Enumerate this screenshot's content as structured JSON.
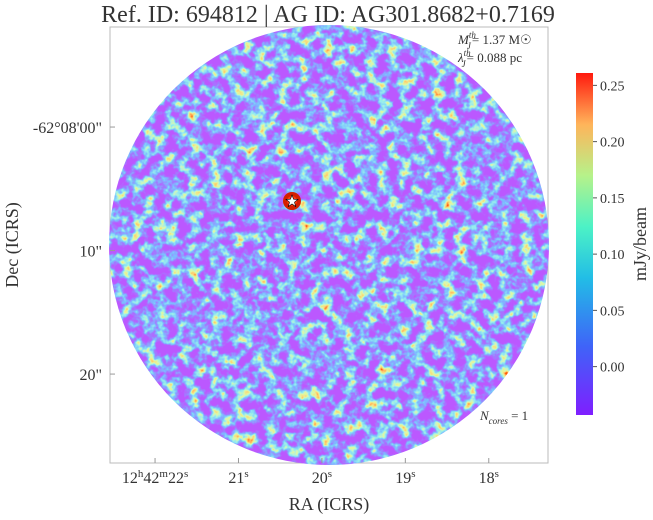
{
  "chart_data": {
    "type": "image",
    "title": "Ref. ID: 694812 | AG ID: AG301.8682+0.7169",
    "xlabel": "RA (ICRS)",
    "ylabel": "Dec (ICRS)",
    "xlim": [
      22.54,
      17.29
    ],
    "xticks": [
      {
        "value": 22,
        "label": "12h42m22s"
      },
      {
        "value": 21,
        "label": "21s"
      },
      {
        "value": 20,
        "label": "20s"
      },
      {
        "value": 19,
        "label": "19s"
      },
      {
        "value": 18,
        "label": "18s"
      }
    ],
    "ylim": [
      27.2,
      -8.1
    ],
    "yticks": [
      {
        "value": 0,
        "label": "-62°08'00\""
      },
      {
        "value": 10,
        "label": "10\""
      },
      {
        "value": 20,
        "label": "20\""
      }
    ],
    "annotations": {
      "mass": {
        "symbol": "M",
        "sub": "J",
        "sup": "th",
        "text": "= 1.37 M☉"
      },
      "length": {
        "symbol": "λ",
        "sub": "J",
        "sup": "th",
        "text": "= 0.088 pc"
      },
      "cores": {
        "symbol": "N",
        "sub": "cores",
        "text": " = 1"
      }
    },
    "colorbar": {
      "label": "mJy/beam",
      "lim": [
        -0.043,
        0.261
      ],
      "ticks": [
        {
          "value": 0,
          "label": "0.00"
        },
        {
          "value": 0.05,
          "label": "0.05"
        },
        {
          "value": 0.1,
          "label": "0.10"
        },
        {
          "value": 0.15,
          "label": "0.15"
        },
        {
          "value": 0.2,
          "label": "0.20"
        },
        {
          "value": 0.25,
          "label": "0.25"
        }
      ]
    }
  }
}
